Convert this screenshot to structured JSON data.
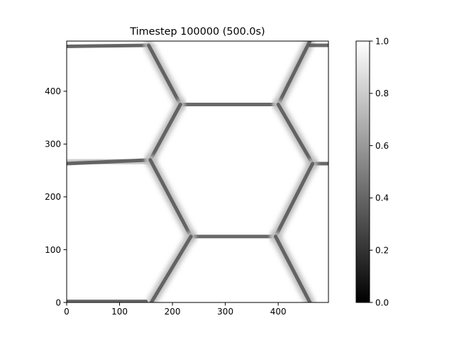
{
  "chart_data": [
    {
      "type": "heatmap",
      "title": "Timestep 100000 (500.0s)",
      "xlabel": "",
      "ylabel": "",
      "xlim": [
        0,
        495
      ],
      "ylim": [
        0,
        495
      ],
      "xticks": [
        0,
        100,
        200,
        300,
        400
      ],
      "yticks": [
        0,
        100,
        200,
        300,
        400
      ],
      "xtick_labels": [
        "0",
        "100",
        "200",
        "300",
        "400"
      ],
      "ytick_labels": [
        "0",
        "100",
        "200",
        "300",
        "400"
      ],
      "grid": false,
      "colormap": "gray",
      "value_range": [
        0,
        1
      ],
      "background_value": 1.0,
      "boundary_value": 0.35,
      "boundaries": [
        {
          "x": [
            0,
            155
          ],
          "y": [
            485,
            487
          ]
        },
        {
          "x": [
            155,
            215
          ],
          "y": [
            487,
            375
          ]
        },
        {
          "x": [
            215,
            400
          ],
          "y": [
            375,
            375
          ]
        },
        {
          "x": [
            400,
            460
          ],
          "y": [
            375,
            495
          ]
        },
        {
          "x": [
            460,
            495
          ],
          "y": [
            487,
            487
          ]
        },
        {
          "x": [
            0,
            158
          ],
          "y": [
            263,
            270
          ]
        },
        {
          "x": [
            158,
            215
          ],
          "y": [
            270,
            375
          ]
        },
        {
          "x": [
            400,
            465
          ],
          "y": [
            375,
            263
          ]
        },
        {
          "x": [
            465,
            495
          ],
          "y": [
            263,
            263
          ]
        },
        {
          "x": [
            158,
            235
          ],
          "y": [
            270,
            125
          ]
        },
        {
          "x": [
            235,
            395
          ],
          "y": [
            125,
            125
          ]
        },
        {
          "x": [
            395,
            465
          ],
          "y": [
            125,
            263
          ]
        },
        {
          "x": [
            235,
            160
          ],
          "y": [
            125,
            0
          ]
        },
        {
          "x": [
            395,
            460
          ],
          "y": [
            125,
            0
          ]
        },
        {
          "x": [
            0,
            150
          ],
          "y": [
            2,
            2
          ]
        }
      ]
    },
    {
      "type": "colorbar",
      "range": [
        0,
        1
      ],
      "ticks": [
        0.0,
        0.2,
        0.4,
        0.6,
        0.8,
        1.0
      ],
      "tick_labels": [
        "0.0",
        "0.2",
        "0.4",
        "0.6",
        "0.8",
        "1.0"
      ],
      "colormap": "gray"
    }
  ]
}
